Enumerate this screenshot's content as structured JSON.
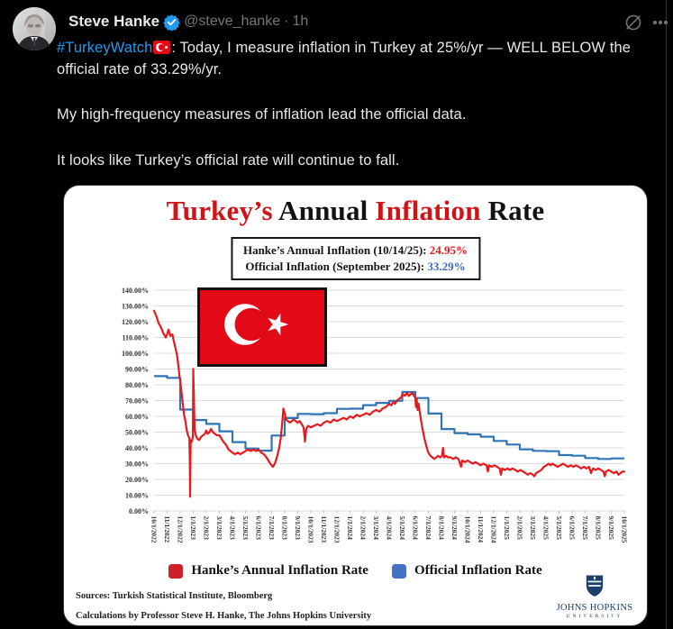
{
  "tweet": {
    "author": "Steve Hanke",
    "handle": "@steve_hanke",
    "separator": "·",
    "time": "1h",
    "p1_hashtag": "#TurkeyWatch",
    "p1_rest": ": Today, I measure inflation in Turkey at 25%/yr — WELL BELOW the official rate of 33.29%/yr.",
    "p2": "My high-frequency measures of inflation lead the official data.",
    "p3": "It looks like Turkey’s official rate will continue to fall."
  },
  "colors": {
    "link_blue": "#1d9bf0",
    "text_primary": "#e7e9ea",
    "text_secondary": "#71767b",
    "hanke_red": "#e8191c",
    "official_blue": "#2e75b6",
    "flag_red": "#e30a17",
    "jhu_blue": "#1d3e6d",
    "divider": "#2f3336"
  },
  "chart_card": {
    "title_segments": [
      {
        "text": "Turkey’s ",
        "color": "#d01317"
      },
      {
        "text": "Annual ",
        "color": "#121212"
      },
      {
        "text": "Inflation ",
        "color": "#d01317"
      },
      {
        "text": "Rate",
        "color": "#121212"
      }
    ],
    "stats_box": {
      "line1_label": "Hanke’s Annual Inflation (10/14/25): ",
      "line1_value": "24.95%",
      "line1_value_color": "#e8191c",
      "line2_label": "Official Inflation (September 2025): ",
      "line2_value": "33.29%",
      "line2_value_color": "#3a6bc9"
    },
    "legend": [
      {
        "label": "Hanke’s Annual Inflation Rate",
        "color": "#cf2128"
      },
      {
        "label": "Official Inflation Rate",
        "color": "#4472c4"
      }
    ],
    "source_line1": "Sources: Turkish Statistical Institute, Bloomberg",
    "source_line2": "Calculations by Professor Steve H. Hanke, The Johns Hopkins University",
    "jhu_logo": {
      "line1": "JOHNS HOPKINS",
      "line2": "UNIVERSITY"
    }
  },
  "chart_data": {
    "type": "line",
    "title": "Turkey's Annual Inflation Rate",
    "xlabel": "",
    "ylabel": "",
    "ylim": [
      0,
      140
    ],
    "ytick_step": 10,
    "grid": "horizontal",
    "legend_position": "bottom",
    "x_labels": [
      "10/1/2022",
      "11/1/2022",
      "12/1/2022",
      "1/1/2023",
      "2/1/2023",
      "3/1/2023",
      "4/1/2023",
      "5/1/2023",
      "6/1/2023",
      "7/1/2023",
      "8/1/2023",
      "9/1/2023",
      "10/1/2023",
      "11/1/2023",
      "12/1/2023",
      "1/1/2024",
      "2/1/2024",
      "3/1/2024",
      "4/1/2024",
      "5/1/2024",
      "6/1/2024",
      "7/1/2024",
      "8/1/2024",
      "9/1/2024",
      "10/1/2024",
      "11/1/2024",
      "12/1/2024",
      "1/1/2025",
      "2/1/2025",
      "3/1/2025",
      "4/1/2025",
      "5/1/2025",
      "6/1/2025",
      "7/1/2025",
      "8/1/2025",
      "9/1/2025",
      "10/1/2025"
    ],
    "series": [
      {
        "name": "Official Inflation Rate",
        "style": "step",
        "color": "#2e75b6",
        "values": [
          85.51,
          84.39,
          64.27,
          57.68,
          55.18,
          50.51,
          43.68,
          39.59,
          38.21,
          47.83,
          58.94,
          61.53,
          61.36,
          61.98,
          64.77,
          64.86,
          67.07,
          68.5,
          69.8,
          75.45,
          71.6,
          61.78,
          51.97,
          49.38,
          48.58,
          47.09,
          44.38,
          42.12,
          39.05,
          38.1,
          37.86,
          35.41,
          35.05,
          33.52,
          32.95,
          33.29
        ]
      },
      {
        "name": "Hanke's Annual Inflation Rate",
        "style": "line",
        "color": "#e8191c",
        "points": [
          [
            0,
            127
          ],
          [
            0.2,
            123
          ],
          [
            0.35,
            119
          ],
          [
            0.5,
            117
          ],
          [
            0.7,
            113
          ],
          [
            0.9,
            110
          ],
          [
            1,
            112
          ],
          [
            1.1,
            115
          ],
          [
            1.25,
            111
          ],
          [
            1.4,
            112
          ],
          [
            1.5,
            108
          ],
          [
            1.65,
            103
          ],
          [
            1.75,
            99
          ],
          [
            1.85,
            93
          ],
          [
            1.95,
            85
          ],
          [
            2,
            83
          ],
          [
            2.1,
            75
          ],
          [
            2.2,
            68
          ],
          [
            2.3,
            61
          ],
          [
            2.4,
            57
          ],
          [
            2.5,
            51
          ],
          [
            2.6,
            48
          ],
          [
            2.7,
            46
          ],
          [
            2.74,
            30
          ],
          [
            2.76,
            9
          ],
          [
            2.8,
            45
          ],
          [
            2.9,
            44
          ],
          [
            2.97,
            47
          ],
          [
            3,
            90
          ],
          [
            3.05,
            72
          ],
          [
            3.1,
            52
          ],
          [
            3.2,
            48
          ],
          [
            3.3,
            46
          ],
          [
            3.45,
            45
          ],
          [
            3.6,
            47
          ],
          [
            3.75,
            48
          ],
          [
            3.9,
            49
          ],
          [
            4,
            51
          ],
          [
            4.1,
            49
          ],
          [
            4.25,
            50
          ],
          [
            4.35,
            52
          ],
          [
            4.5,
            50
          ],
          [
            4.65,
            49
          ],
          [
            4.8,
            48
          ],
          [
            5,
            48
          ],
          [
            5.15,
            46
          ],
          [
            5.3,
            44
          ],
          [
            5.5,
            42
          ],
          [
            5.7,
            39
          ],
          [
            5.85,
            38
          ],
          [
            6,
            37
          ],
          [
            6.2,
            36
          ],
          [
            6.4,
            37
          ],
          [
            6.6,
            36
          ],
          [
            6.8,
            37
          ],
          [
            7,
            38
          ],
          [
            7.2,
            39
          ],
          [
            7.4,
            38
          ],
          [
            7.6,
            39
          ],
          [
            7.8,
            38
          ],
          [
            8,
            39
          ],
          [
            8.2,
            37
          ],
          [
            8.4,
            36
          ],
          [
            8.6,
            34
          ],
          [
            8.75,
            32
          ],
          [
            8.9,
            30
          ],
          [
            9,
            29
          ],
          [
            9.1,
            28
          ],
          [
            9.25,
            30
          ],
          [
            9.4,
            34
          ],
          [
            9.55,
            39
          ],
          [
            9.7,
            46
          ],
          [
            9.8,
            55
          ],
          [
            9.9,
            65
          ],
          [
            10,
            62
          ],
          [
            10.1,
            58
          ],
          [
            10.25,
            57
          ],
          [
            10.4,
            56
          ],
          [
            10.55,
            57
          ],
          [
            10.7,
            58
          ],
          [
            10.85,
            57
          ],
          [
            11,
            56
          ],
          [
            11.15,
            57
          ],
          [
            11.3,
            55
          ],
          [
            11.45,
            53
          ],
          [
            11.55,
            44
          ],
          [
            11.65,
            52
          ],
          [
            11.8,
            54
          ],
          [
            12,
            53
          ],
          [
            12.25,
            54
          ],
          [
            12.5,
            55
          ],
          [
            12.75,
            54
          ],
          [
            13,
            56
          ],
          [
            13.25,
            57
          ],
          [
            13.5,
            56
          ],
          [
            13.75,
            58
          ],
          [
            14,
            57
          ],
          [
            14.25,
            58
          ],
          [
            14.5,
            59
          ],
          [
            14.75,
            58
          ],
          [
            15,
            60
          ],
          [
            15.25,
            59
          ],
          [
            15.5,
            61
          ],
          [
            15.75,
            60
          ],
          [
            16,
            61
          ],
          [
            16.25,
            62
          ],
          [
            16.5,
            61
          ],
          [
            16.75,
            63
          ],
          [
            17,
            64
          ],
          [
            17.25,
            63
          ],
          [
            17.5,
            65
          ],
          [
            17.75,
            66
          ],
          [
            18,
            68
          ],
          [
            18.15,
            67
          ],
          [
            18.3,
            69
          ],
          [
            18.45,
            68
          ],
          [
            18.6,
            70
          ],
          [
            18.75,
            71
          ],
          [
            18.9,
            72
          ],
          [
            19.05,
            74
          ],
          [
            19.2,
            73
          ],
          [
            19.35,
            75
          ],
          [
            19.5,
            73
          ],
          [
            19.65,
            74
          ],
          [
            19.8,
            75
          ],
          [
            19.9,
            73
          ],
          [
            20,
            72
          ],
          [
            20.05,
            66
          ],
          [
            20.1,
            71
          ],
          [
            20.18,
            64
          ],
          [
            20.25,
            68
          ],
          [
            20.35,
            62
          ],
          [
            20.45,
            57
          ],
          [
            20.55,
            52
          ],
          [
            20.7,
            46
          ],
          [
            20.85,
            41
          ],
          [
            21,
            37
          ],
          [
            21.15,
            35
          ],
          [
            21.3,
            34
          ],
          [
            21.45,
            33
          ],
          [
            21.6,
            34
          ],
          [
            21.75,
            35
          ],
          [
            21.9,
            34
          ],
          [
            22.05,
            35
          ],
          [
            22.12,
            40
          ],
          [
            22.2,
            34
          ],
          [
            22.35,
            35
          ],
          [
            22.5,
            34
          ],
          [
            22.7,
            34
          ],
          [
            22.9,
            33
          ],
          [
            23.1,
            34
          ],
          [
            23.3,
            33
          ],
          [
            23.5,
            28
          ],
          [
            23.6,
            32
          ],
          [
            23.8,
            31
          ],
          [
            24,
            32
          ],
          [
            24.2,
            31
          ],
          [
            24.4,
            30
          ],
          [
            24.6,
            31
          ],
          [
            24.8,
            30
          ],
          [
            25,
            29
          ],
          [
            25.2,
            30
          ],
          [
            25.45,
            29
          ],
          [
            25.55,
            25
          ],
          [
            25.65,
            29
          ],
          [
            25.85,
            28
          ],
          [
            26.05,
            29
          ],
          [
            26.25,
            28
          ],
          [
            26.45,
            27
          ],
          [
            26.55,
            23
          ],
          [
            26.65,
            27
          ],
          [
            26.85,
            26
          ],
          [
            27.05,
            27
          ],
          [
            27.25,
            26
          ],
          [
            27.45,
            27
          ],
          [
            27.65,
            26
          ],
          [
            27.85,
            25
          ],
          [
            28.05,
            26
          ],
          [
            28.25,
            25
          ],
          [
            28.45,
            24
          ],
          [
            28.6,
            23
          ],
          [
            28.8,
            24
          ],
          [
            29,
            23
          ],
          [
            29.1,
            22
          ],
          [
            29.25,
            24
          ],
          [
            29.45,
            25
          ],
          [
            29.65,
            26
          ],
          [
            29.85,
            28
          ],
          [
            30.05,
            29
          ],
          [
            30.2,
            30
          ],
          [
            30.35,
            29
          ],
          [
            30.5,
            30
          ],
          [
            30.7,
            29
          ],
          [
            30.9,
            28
          ],
          [
            31.1,
            29
          ],
          [
            31.3,
            30
          ],
          [
            31.5,
            29
          ],
          [
            31.7,
            28
          ],
          [
            31.9,
            29
          ],
          [
            32.1,
            28
          ],
          [
            32.3,
            29
          ],
          [
            32.5,
            28
          ],
          [
            32.7,
            27
          ],
          [
            32.9,
            28
          ],
          [
            33.1,
            27
          ],
          [
            33.3,
            28
          ],
          [
            33.45,
            24
          ],
          [
            33.6,
            27
          ],
          [
            33.8,
            26
          ],
          [
            34,
            27
          ],
          [
            34.2,
            26
          ],
          [
            34.4,
            25
          ],
          [
            34.5,
            22
          ],
          [
            34.6,
            25
          ],
          [
            34.8,
            26
          ],
          [
            35,
            25
          ],
          [
            35.2,
            24
          ],
          [
            35.4,
            25
          ],
          [
            35.55,
            23
          ],
          [
            35.7,
            24
          ],
          [
            35.85,
            25
          ],
          [
            36,
            24.95
          ]
        ]
      }
    ]
  }
}
